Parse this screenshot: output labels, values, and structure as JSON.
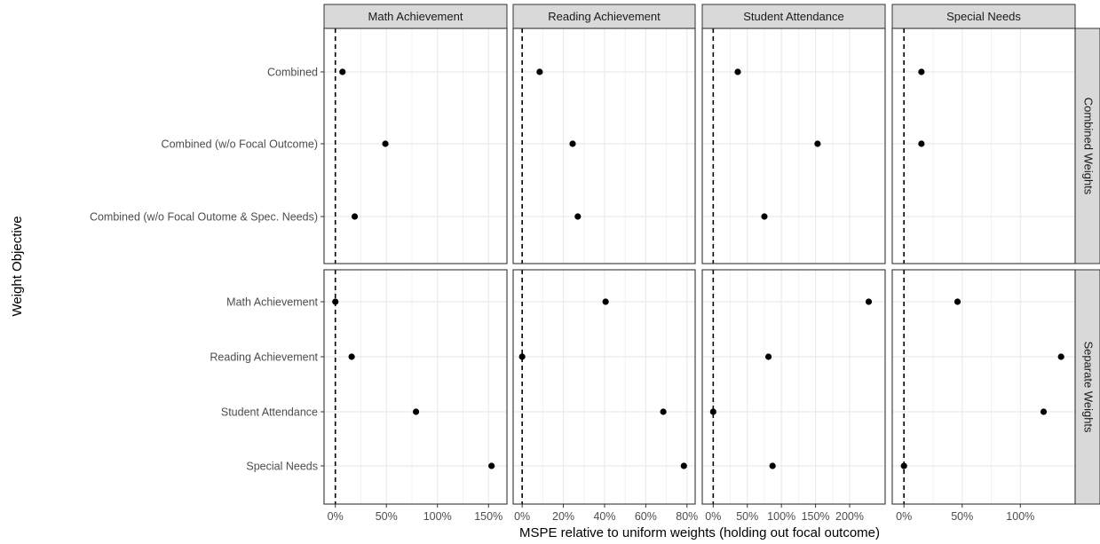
{
  "chart_data": {
    "type": "scatter",
    "xlabel": "MSPE relative to uniform weights (holding out focal outcome)",
    "ylabel": "Weight Objective",
    "column_facets": [
      "Math Achievement",
      "Reading Achievement",
      "Student Attendance",
      "Special Needs"
    ],
    "row_facets": [
      {
        "label": "Combined Weights",
        "categories": [
          "Combined",
          "Combined (w/o Focal Outcome)",
          "Combined (w/o Focal Outome & Spec. Needs)"
        ]
      },
      {
        "label": "Separate Weights",
        "categories": [
          "Math Achievement",
          "Reading Achievement",
          "Student Attendance",
          "Special Needs"
        ]
      }
    ],
    "reference_line": {
      "x": 0,
      "style": "dashed"
    },
    "grid": true,
    "panels": [
      {
        "facet": "Math Achievement",
        "xlim": [
          -0.03,
          1.6
        ],
        "ticks": [
          0,
          0.5,
          1,
          1.5
        ],
        "tick_labels": [
          "0%",
          "50%",
          "100%",
          "150%"
        ],
        "combined": [
          0.07,
          0.49,
          0.19
        ],
        "separate": [
          0.0,
          0.16,
          0.79,
          1.53
        ]
      },
      {
        "facet": "Reading Achievement",
        "xlim": [
          -0.004,
          0.8
        ],
        "ticks": [
          0,
          0.2,
          0.4,
          0.6,
          0.8
        ],
        "tick_labels": [
          "0%",
          "20%",
          "40%",
          "60%",
          "80%"
        ],
        "combined": [
          0.085,
          0.245,
          0.27
        ],
        "separate": [
          0.405,
          0.0,
          0.685,
          0.785
        ]
      },
      {
        "facet": "Student Attendance",
        "xlim": [
          -0.04,
          2.4
        ],
        "ticks": [
          0,
          0.5,
          1,
          1.5,
          2
        ],
        "tick_labels": [
          "0%",
          "50%",
          "100%",
          "150%",
          "200%"
        ],
        "combined": [
          0.36,
          1.53,
          0.75
        ],
        "separate": [
          2.28,
          0.81,
          0.0,
          0.87
        ]
      },
      {
        "facet": "Special Needs",
        "xlim": [
          -0.03,
          1.4
        ],
        "ticks": [
          0,
          0.5,
          1
        ],
        "tick_labels": [
          "0%",
          "50%",
          "100%"
        ],
        "combined": [
          0.15,
          0.15,
          null
        ],
        "separate": [
          0.46,
          1.35,
          1.2,
          0.0
        ]
      }
    ]
  }
}
